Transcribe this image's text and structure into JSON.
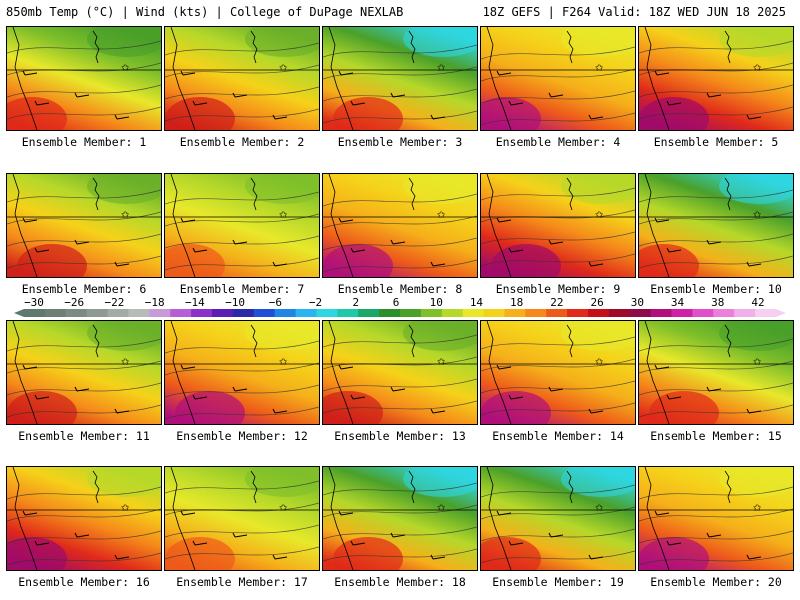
{
  "header": {
    "left": "850mb Temp (°C) | Wind (kts) | College of DuPage NEXLAB",
    "right": "18Z GEFS | F264 Valid: 18Z WED JUN 18 2025"
  },
  "label_prefix": "Ensemble Member:",
  "members": [
    {
      "label": "Ensemble Member: 1",
      "scheme": 0
    },
    {
      "label": "Ensemble Member: 2",
      "scheme": 1
    },
    {
      "label": "Ensemble Member: 3",
      "scheme": 2
    },
    {
      "label": "Ensemble Member: 4",
      "scheme": 3
    },
    {
      "label": "Ensemble Member: 5",
      "scheme": 4
    },
    {
      "label": "Ensemble Member: 6",
      "scheme": 1
    },
    {
      "label": "Ensemble Member: 7",
      "scheme": 5
    },
    {
      "label": "Ensemble Member: 8",
      "scheme": 3
    },
    {
      "label": "Ensemble Member: 9",
      "scheme": 4
    },
    {
      "label": "Ensemble Member: 10",
      "scheme": 2
    },
    {
      "label": "Ensemble Member: 11",
      "scheme": 1
    },
    {
      "label": "Ensemble Member: 12",
      "scheme": 3
    },
    {
      "label": "Ensemble Member: 13",
      "scheme": 1
    },
    {
      "label": "Ensemble Member: 14",
      "scheme": 3
    },
    {
      "label": "Ensemble Member: 15",
      "scheme": 0
    },
    {
      "label": "Ensemble Member: 16",
      "scheme": 4
    },
    {
      "label": "Ensemble Member: 17",
      "scheme": 5
    },
    {
      "label": "Ensemble Member: 18",
      "scheme": 2
    },
    {
      "label": "Ensemble Member: 19",
      "scheme": 2
    },
    {
      "label": "Ensemble Member: 20",
      "scheme": 3
    }
  ],
  "colorbar": {
    "labels": [
      "−30",
      "−26",
      "−22",
      "−18",
      "−14",
      "−10",
      "−6",
      "−2",
      "2",
      "6",
      "10",
      "14",
      "18",
      "22",
      "26",
      "30",
      "34",
      "38",
      "42"
    ],
    "colors": [
      "#5e7a6e",
      "#6f7f75",
      "#7c8c85",
      "#8f9a92",
      "#a4aaa6",
      "#b7bcb9",
      "#c89ad8",
      "#b45fd6",
      "#8a2fc7",
      "#5a1fb4",
      "#2a2aa8",
      "#1e4fd6",
      "#1f86e6",
      "#2ab4f0",
      "#2ed6e0",
      "#20c8a8",
      "#1aa86a",
      "#2a8f2a",
      "#4aa02a",
      "#7fbf2a",
      "#b5d82a",
      "#e8e82a",
      "#f5d21a",
      "#f5b01a",
      "#f58a1a",
      "#ee5a1a",
      "#e02a1a",
      "#c4101a",
      "#a00a2a",
      "#8a0a4a",
      "#b0107a",
      "#d020a8",
      "#e050c8",
      "#ea80dc",
      "#f0b0ea",
      "#f5d0f2"
    ]
  }
}
